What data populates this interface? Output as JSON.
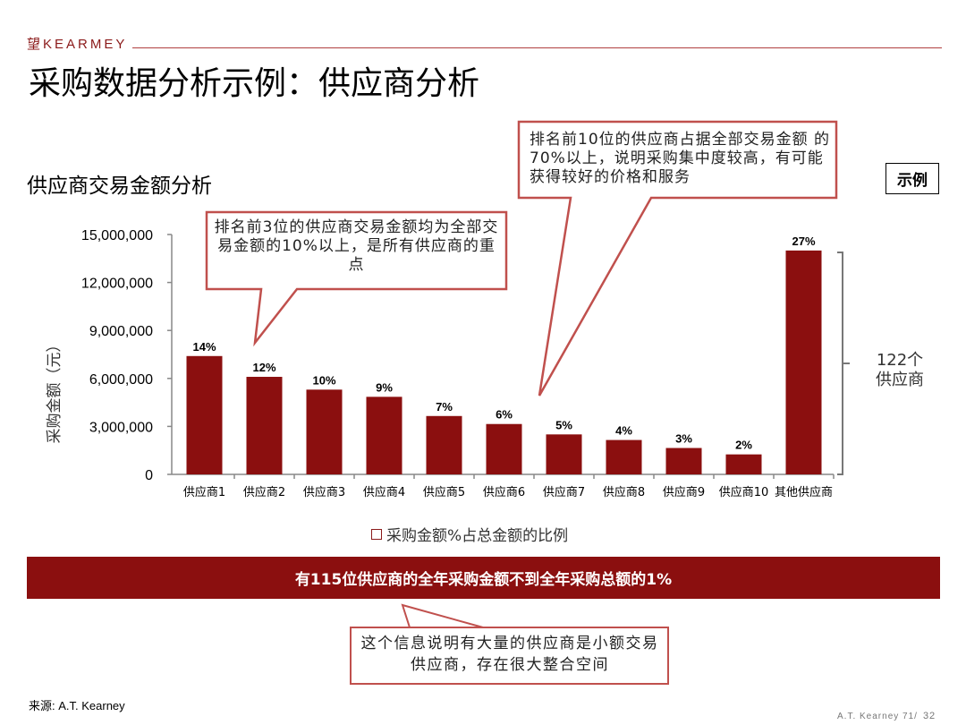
{
  "header": {
    "logo": "望KEARMEY",
    "title": "采购数据分析示例：供应商分析"
  },
  "chart_title": "供应商交易金额分析",
  "example_badge": "示例",
  "callouts": {
    "top_right": "排名前10位的供应商占据全部交易金额 的70%以上，说明采购集中度较高，有可能获得较好的价格和服务",
    "top_left": "排名前3位的供应商交易金额均为全部交易金额的10%以上，是所有供应商的重点",
    "bottom": "这个信息说明有大量的供应商是小额交易供应商，存在很大整合空间"
  },
  "chart_data": {
    "type": "bar",
    "title": "",
    "xlabel": "",
    "ylabel": "采购金额（元）",
    "ylim": [
      0,
      15000000
    ],
    "yticks": [
      0,
      3000000,
      6000000,
      9000000,
      12000000,
      15000000
    ],
    "ytick_labels": [
      "0",
      "3,000,000",
      "6,000,000",
      "9,000,000",
      "12,000,000",
      "15,000,000"
    ],
    "categories": [
      "供应商1",
      "供应商2",
      "供应商3",
      "供应商4",
      "供应商5",
      "供应商6",
      "供应商7",
      "供应商8",
      "供应商9",
      "供应商10",
      "其他供应商"
    ],
    "values": [
      7400000,
      6100000,
      5300000,
      4850000,
      3650000,
      3150000,
      2500000,
      2150000,
      1650000,
      1250000,
      14000000
    ],
    "data_labels": [
      "14%",
      "12%",
      "10%",
      "9%",
      "7%",
      "6%",
      "5%",
      "4%",
      "3%",
      "2%",
      "27%"
    ],
    "bar_color": "#8b0f0f",
    "grid": false,
    "bracket_label": "122个供应商",
    "legend": "采购金额%占总金额的比例"
  },
  "banner": "有115位供应商的全年采购金额不到全年采购总额的1%",
  "source": "来源: A.T. Kearney",
  "footer": {
    "text": "A.T.  Kearney  71/",
    "page": "32"
  }
}
